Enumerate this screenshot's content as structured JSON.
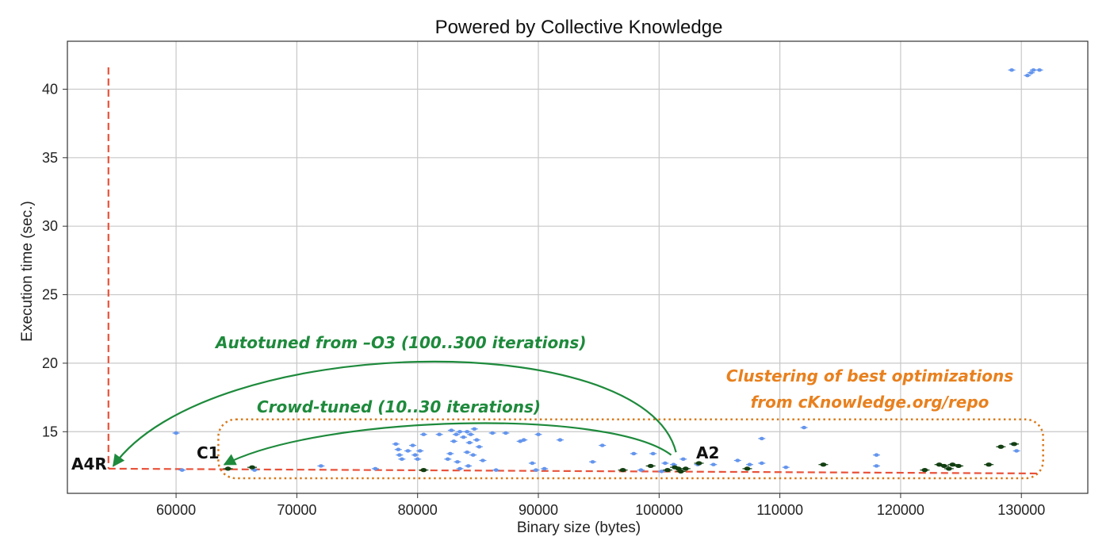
{
  "chart_data": {
    "type": "scatter",
    "title": "Powered by Collective Knowledge",
    "xlabel": "Binary size (bytes)",
    "ylabel": "Execution time (sec.)",
    "xlim": [
      51000,
      135500
    ],
    "ylim": [
      10.5,
      43.5
    ],
    "xticks": [
      60000,
      70000,
      80000,
      90000,
      100000,
      110000,
      120000,
      130000
    ],
    "yticks": [
      15,
      20,
      25,
      30,
      35,
      40
    ],
    "grid": true,
    "series": [
      {
        "color": "#6495ed",
        "points": [
          [
            129200,
            41.4
          ],
          [
            130500,
            41.0
          ],
          [
            131000,
            41.4
          ],
          [
            131500,
            41.4
          ],
          [
            130800,
            41.2
          ],
          [
            60000,
            14.9
          ],
          [
            112000,
            15.3
          ],
          [
            108500,
            14.5
          ],
          [
            129300,
            14.1
          ],
          [
            129600,
            13.6
          ],
          [
            118000,
            13.3
          ],
          [
            78200,
            14.1
          ],
          [
            78400,
            13.7
          ],
          [
            78500,
            13.3
          ],
          [
            78700,
            13.0
          ],
          [
            79200,
            13.6
          ],
          [
            79600,
            14.0
          ],
          [
            79800,
            13.3
          ],
          [
            80200,
            13.6
          ],
          [
            80500,
            14.8
          ],
          [
            80000,
            13.0
          ],
          [
            81800,
            14.8
          ],
          [
            82800,
            15.1
          ],
          [
            83200,
            14.8
          ],
          [
            83500,
            15.0
          ],
          [
            83800,
            14.6
          ],
          [
            84100,
            15.0
          ],
          [
            84400,
            14.8
          ],
          [
            84700,
            15.2
          ],
          [
            84900,
            14.4
          ],
          [
            84300,
            14.2
          ],
          [
            83000,
            14.3
          ],
          [
            82700,
            13.4
          ],
          [
            82500,
            13.0
          ],
          [
            83300,
            12.8
          ],
          [
            84100,
            13.5
          ],
          [
            84600,
            13.3
          ],
          [
            85100,
            13.9
          ],
          [
            85400,
            12.9
          ],
          [
            86200,
            14.9
          ],
          [
            87300,
            14.9
          ],
          [
            88500,
            14.3
          ],
          [
            88800,
            14.4
          ],
          [
            90000,
            14.8
          ],
          [
            91800,
            14.4
          ],
          [
            95300,
            14.0
          ],
          [
            94500,
            12.8
          ],
          [
            97900,
            13.4
          ],
          [
            99500,
            13.4
          ],
          [
            100500,
            12.7
          ],
          [
            102000,
            13.0
          ],
          [
            103200,
            12.6
          ],
          [
            104500,
            12.6
          ],
          [
            106500,
            12.9
          ],
          [
            107500,
            12.6
          ],
          [
            108500,
            12.7
          ],
          [
            110500,
            12.4
          ],
          [
            118000,
            12.5
          ],
          [
            72000,
            12.5
          ],
          [
            76500,
            12.3
          ],
          [
            83500,
            12.3
          ],
          [
            84200,
            12.5
          ],
          [
            86500,
            12.2
          ],
          [
            89500,
            12.7
          ],
          [
            90500,
            12.3
          ],
          [
            89800,
            12.2
          ],
          [
            100200,
            12.1
          ],
          [
            101200,
            12.6
          ],
          [
            60500,
            12.2
          ],
          [
            66500,
            12.2
          ],
          [
            98500,
            12.2
          ]
        ]
      },
      {
        "color": "#123f12",
        "points": [
          [
            64300,
            12.3
          ],
          [
            66300,
            12.4
          ],
          [
            80500,
            12.2
          ],
          [
            97000,
            12.2
          ],
          [
            99300,
            12.5
          ],
          [
            100700,
            12.2
          ],
          [
            101300,
            12.4
          ],
          [
            101600,
            12.3
          ],
          [
            101800,
            12.1
          ],
          [
            102200,
            12.3
          ],
          [
            103300,
            12.7
          ],
          [
            107300,
            12.3
          ],
          [
            113600,
            12.6
          ],
          [
            122000,
            12.2
          ],
          [
            123200,
            12.6
          ],
          [
            123600,
            12.5
          ],
          [
            124000,
            12.3
          ],
          [
            124300,
            12.6
          ],
          [
            124800,
            12.5
          ],
          [
            127300,
            12.6
          ],
          [
            128300,
            13.9
          ],
          [
            129400,
            14.1
          ]
        ]
      }
    ],
    "frontier": {
      "color": "#e8523a",
      "vertical": {
        "x": 54400,
        "y_from": 41.6,
        "y_to": 12.3
      },
      "horizontal": {
        "x_from": 54400,
        "y_from": 12.3,
        "x_to": 131600,
        "y_to": 11.95
      }
    },
    "cluster_box": {
      "color": "#d97a1c",
      "x_from": 63500,
      "x_to": 131800,
      "y_from": 11.6,
      "y_to": 15.9
    },
    "annotations": [
      {
        "text": "Autotuned from –O3 (100..300 iterations)",
        "color": "#1e8a3c",
        "arrow_from": [
          101400,
          13.5
        ],
        "arrow_to": [
          54800,
          12.5
        ]
      },
      {
        "text": "Crowd-tuned (10..30 iterations)",
        "color": "#1e8a3c",
        "arrow_from": [
          101000,
          13.3
        ],
        "arrow_to": [
          64000,
          12.6
        ]
      },
      {
        "text_lines": [
          "Clustering of best optimizations",
          "from cKnowledge.org/repo"
        ],
        "color": "#e8801e"
      }
    ],
    "point_labels": [
      {
        "text": "A4R",
        "x": 54400,
        "y": 12.3
      },
      {
        "text": "C1",
        "x": 64300,
        "y": 12.4
      },
      {
        "text": "A2",
        "x": 101500,
        "y": 12.4
      }
    ]
  }
}
